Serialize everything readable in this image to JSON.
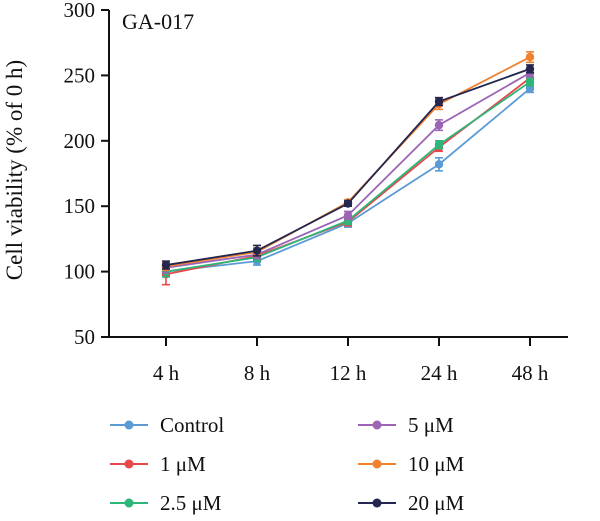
{
  "chart_data": {
    "type": "line",
    "title": "GA-017",
    "xlabel": "",
    "ylabel": "Cell viability (% of 0 h)",
    "categories": [
      "4 h",
      "8 h",
      "12 h",
      "24 h",
      "48 h"
    ],
    "ylim": [
      50,
      300
    ],
    "yticks": [
      50,
      100,
      150,
      200,
      250,
      300
    ],
    "grid": false,
    "legend_position": "bottom",
    "error_bars": true,
    "series": [
      {
        "name": "Control",
        "color": "#5b9bd5",
        "values": [
          100,
          108,
          137,
          182,
          240
        ],
        "errors": [
          4,
          3,
          3,
          5,
          3
        ]
      },
      {
        "name": "1 μM",
        "color": "#e8474b",
        "values": [
          98,
          112,
          138,
          195,
          248
        ],
        "errors": [
          8,
          3,
          3,
          3,
          3
        ]
      },
      {
        "name": "2.5 μM",
        "color": "#2db67a",
        "values": [
          100,
          111,
          139,
          197,
          245
        ],
        "errors": [
          4,
          3,
          3,
          3,
          3
        ]
      },
      {
        "name": "5 μM",
        "color": "#9b64b4",
        "values": [
          103,
          113,
          143,
          212,
          252
        ],
        "errors": [
          4,
          3,
          3,
          4,
          3
        ]
      },
      {
        "name": "10 μM",
        "color": "#f0812f",
        "values": [
          104,
          115,
          153,
          228,
          264
        ],
        "errors": [
          3,
          3,
          2,
          4,
          4
        ]
      },
      {
        "name": "20 μM",
        "color": "#23264e",
        "values": [
          105,
          116,
          152,
          230,
          255
        ],
        "errors": [
          3,
          4,
          2,
          3,
          3
        ]
      }
    ]
  }
}
